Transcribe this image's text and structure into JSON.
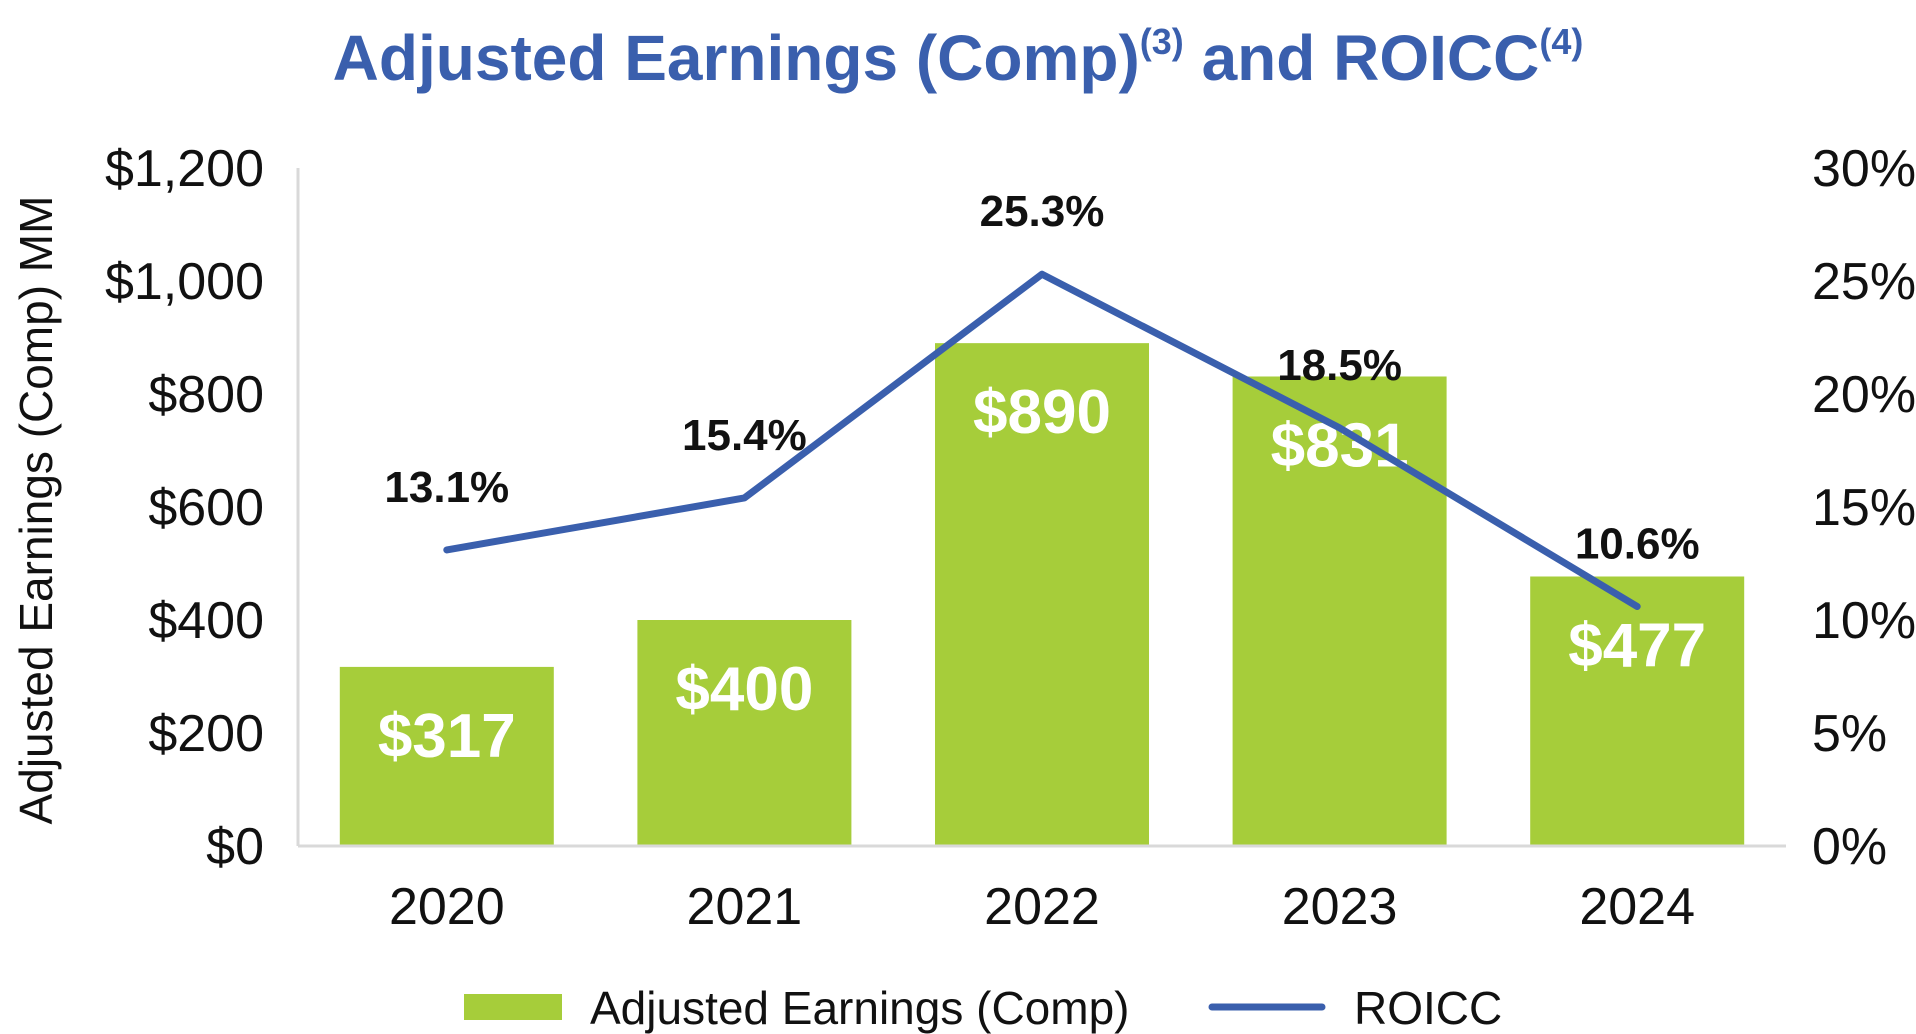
{
  "title": {
    "main_part1": "Adjusted Earnings (Comp)",
    "sup1": "(3)",
    "main_part2": " and ROICC",
    "sup2": "(4)",
    "color": "#3a5fad"
  },
  "chart_data": {
    "type": "bar",
    "categories": [
      "2020",
      "2021",
      "2022",
      "2023",
      "2024"
    ],
    "ylabel": "Adjusted Earnings (Comp) MM",
    "ylim": [
      0,
      1200
    ],
    "y2lim": [
      0,
      30
    ],
    "yticks": [
      "$0",
      "$200",
      "$400",
      "$600",
      "$800",
      "$1,000",
      "$1,200"
    ],
    "y2ticks": [
      "0%",
      "5%",
      "10%",
      "15%",
      "20%",
      "25%",
      "30%"
    ],
    "grid": false,
    "legend_position": "bottom",
    "series": [
      {
        "name": "Adjusted Earnings (Comp)",
        "type": "bar",
        "axis": "left",
        "color": "#a6cd3a",
        "values": [
          317,
          400,
          890,
          831,
          477
        ],
        "labels": [
          "$317",
          "$400",
          "$890",
          "$831",
          "$477"
        ]
      },
      {
        "name": "ROICC",
        "type": "line",
        "axis": "right",
        "color": "#3a5fad",
        "values": [
          13.1,
          15.4,
          25.3,
          18.5,
          10.6
        ],
        "labels": [
          "13.1%",
          "15.4%",
          "25.3%",
          "18.5%",
          "10.6%"
        ]
      }
    ]
  }
}
